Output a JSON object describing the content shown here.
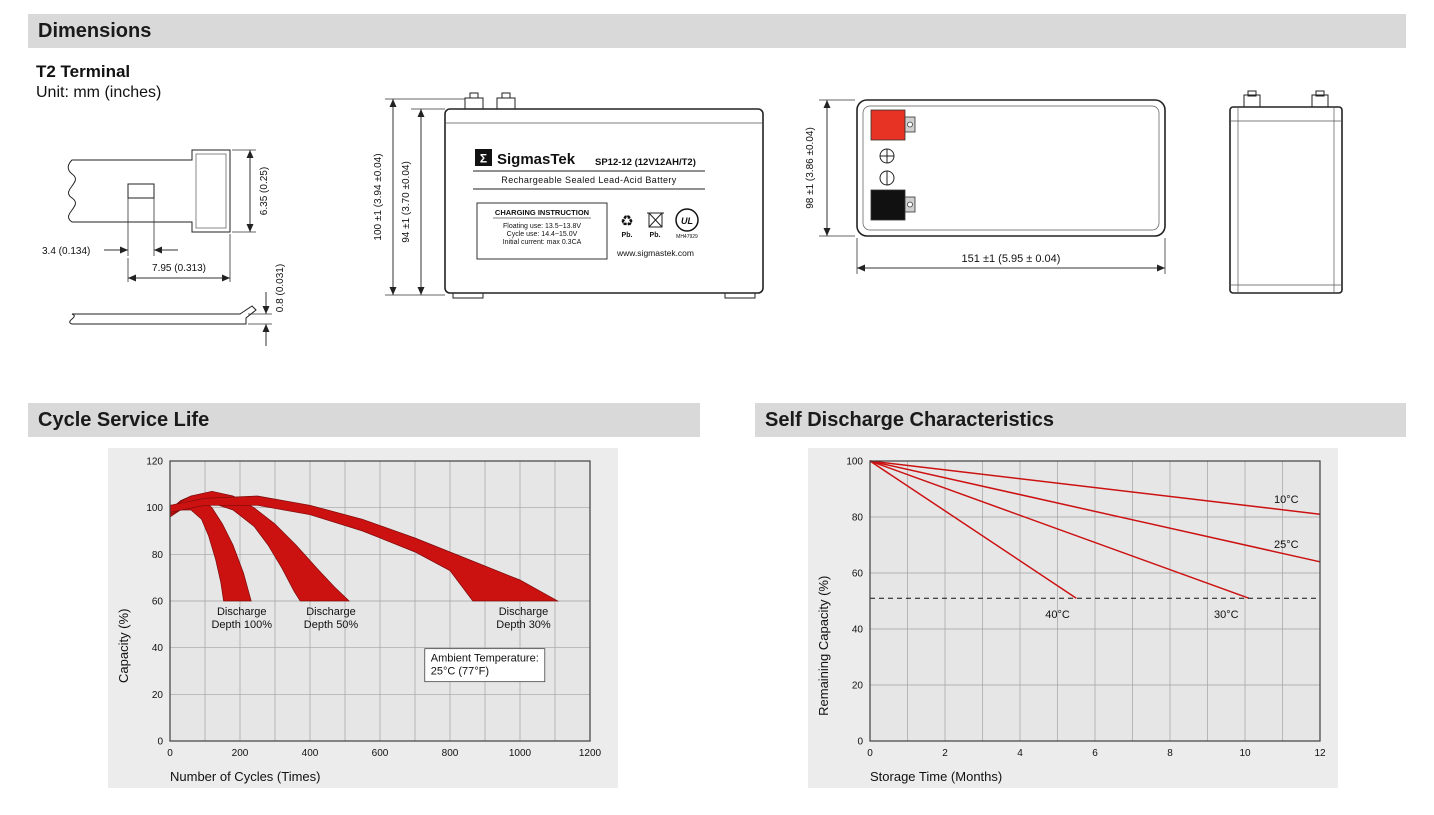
{
  "colors": {
    "bar_bg": "#d9d9d9",
    "red": "#cc1111",
    "plot_bg": "#e6e6e6",
    "grid": "#a2a2a2"
  },
  "sections": {
    "dimensions": "Dimensions",
    "cycle_life": "Cycle Service Life",
    "self_discharge": "Self Discharge Characteristics"
  },
  "dimensions": {
    "terminal_type": "T2 Terminal",
    "unit": "Unit: mm (inches)",
    "terminal_drawing": {
      "height": "6.35 (0.25)",
      "hole_width": "3.4 (0.134)",
      "tab_width": "7.95 (0.313)",
      "thickness": "0.8 (0.031)"
    },
    "front_view": {
      "overall_height": "100 ±1 (3.94 ±0.04)",
      "case_height": "94 ±1 (3.70 ±0.04)"
    },
    "top_view": {
      "width": "98 ±1 (3.86 ±0.04)",
      "length": "151 ±1 (5.95 ± 0.04)"
    },
    "label": {
      "sigma": "Σ",
      "brand": "SigmasTek",
      "model": "SP12-12 (12V12AH/T2)",
      "type_line": "Rechargeable Sealed Lead-Acid Battery",
      "charging_title": "CHARGING INSTRUCTION",
      "charging_lines": [
        "Floating use: 13.5~13.8V",
        "Cycle use: 14.4~15.0V",
        "Initial current: max 0.3CA"
      ],
      "pb1": "Pb.",
      "pb2": "Pb.",
      "ul_text": "UL",
      "ul_code": "MH47929",
      "website": "www.sigmastek.com"
    }
  },
  "chart_data": [
    {
      "type": "area",
      "title": "Cycle Service Life",
      "xlabel": "Number of Cycles (Times)",
      "ylabel": "Capacity (%)",
      "xlim": [
        0,
        1200
      ],
      "ylim": [
        0,
        120
      ],
      "xticks": [
        0,
        200,
        400,
        600,
        800,
        1000,
        1200
      ],
      "yticks": [
        0,
        20,
        40,
        60,
        80,
        100,
        120
      ],
      "x_grid_step": 100,
      "y_grid_step": 20,
      "grid": true,
      "legend_position": "none",
      "bands": [
        {
          "name": "Discharge Depth 100%",
          "upper": [
            [
              0,
              99
            ],
            [
              30,
              103
            ],
            [
              60,
              105
            ],
            [
              90,
              104
            ],
            [
              120,
              100
            ],
            [
              150,
              93
            ],
            [
              180,
              84
            ],
            [
              210,
              72
            ],
            [
              232,
              60
            ]
          ],
          "lower": [
            [
              0,
              96
            ],
            [
              30,
              99
            ],
            [
              60,
              99
            ],
            [
              90,
              95
            ],
            [
              110,
              88
            ],
            [
              130,
              78
            ],
            [
              145,
              68
            ],
            [
              153,
              60
            ]
          ]
        },
        {
          "name": "Discharge Depth 50%",
          "upper": [
            [
              0,
              100
            ],
            [
              60,
              105
            ],
            [
              120,
              107
            ],
            [
              180,
              105
            ],
            [
              240,
              100
            ],
            [
              300,
              93
            ],
            [
              360,
              84
            ],
            [
              420,
              74
            ],
            [
              470,
              66
            ],
            [
              512,
              60
            ]
          ],
          "lower": [
            [
              0,
              97
            ],
            [
              60,
              101
            ],
            [
              120,
              102
            ],
            [
              180,
              99
            ],
            [
              240,
              92
            ],
            [
              280,
              84
            ],
            [
              320,
              74
            ],
            [
              355,
              64
            ],
            [
              372,
              60
            ]
          ]
        },
        {
          "name": "Discharge Depth 30%",
          "upper": [
            [
              0,
              101
            ],
            [
              100,
              104
            ],
            [
              250,
              105
            ],
            [
              400,
              101
            ],
            [
              550,
              95
            ],
            [
              700,
              87
            ],
            [
              850,
              78
            ],
            [
              1000,
              69
            ],
            [
              1108,
              60
            ]
          ],
          "lower": [
            [
              0,
              98
            ],
            [
              100,
              101
            ],
            [
              250,
              101
            ],
            [
              400,
              97
            ],
            [
              550,
              90
            ],
            [
              700,
              81
            ],
            [
              800,
              73
            ],
            [
              865,
              60
            ]
          ]
        }
      ],
      "annotations": [
        {
          "text": "Discharge\nDepth 100%",
          "x": 205,
          "y": 54,
          "anchor": "middle"
        },
        {
          "text": "Discharge\nDepth 50%",
          "x": 460,
          "y": 54,
          "anchor": "middle"
        },
        {
          "text": "Discharge\nDepth 30%",
          "x": 1010,
          "y": 54,
          "anchor": "middle"
        },
        {
          "text": "Ambient Temperature:\n25°C (77°F)",
          "x": 745,
          "y": 34,
          "anchor": "start",
          "box": true
        }
      ]
    },
    {
      "type": "line",
      "title": "Self Discharge Characteristics",
      "xlabel": "Storage Time (Months)",
      "ylabel": "Remaining Capacity (%)",
      "xlim": [
        0,
        12
      ],
      "ylim": [
        0,
        100
      ],
      "xticks": [
        0,
        2,
        4,
        6,
        8,
        10,
        12
      ],
      "yticks": [
        0,
        20,
        40,
        60,
        80,
        100
      ],
      "x_grid_step": 1,
      "y_grid_step": 20,
      "grid": true,
      "legend_position": "inline",
      "series": [
        {
          "name": "40°C",
          "points": [
            [
              0,
              100
            ],
            [
              5.5,
              51
            ]
          ]
        },
        {
          "name": "30°C",
          "points": [
            [
              0,
              100
            ],
            [
              10.1,
              51
            ]
          ]
        },
        {
          "name": "25°C",
          "points": [
            [
              0,
              100
            ],
            [
              12,
              64
            ]
          ]
        },
        {
          "name": "10°C",
          "points": [
            [
              0,
              100
            ],
            [
              12,
              81
            ]
          ]
        }
      ],
      "dashed_line_y": 51,
      "annotations": [
        {
          "text": "10°C",
          "x": 11.1,
          "y": 85,
          "anchor": "middle"
        },
        {
          "text": "25°C",
          "x": 11.1,
          "y": 69,
          "anchor": "middle"
        },
        {
          "text": "40°C",
          "x": 5.0,
          "y": 44,
          "anchor": "middle"
        },
        {
          "text": "30°C",
          "x": 9.5,
          "y": 44,
          "anchor": "middle"
        }
      ]
    }
  ]
}
